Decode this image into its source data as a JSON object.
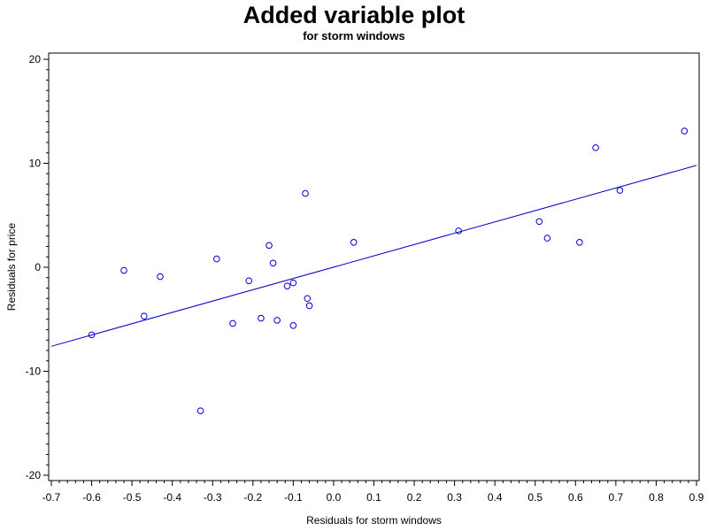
{
  "chart_data": {
    "type": "scatter",
    "title": "Added variable plot",
    "subtitle": "for storm windows",
    "xlabel": "Residuals for storm windows",
    "ylabel": "Residuals for price",
    "xlim": [
      -0.7,
      0.9
    ],
    "ylim": [
      -20,
      20
    ],
    "x_ticks": [
      "-0.7",
      "-0.6",
      "-0.5",
      "-0.4",
      "-0.3",
      "-0.2",
      "-0.1",
      "0.0",
      "0.1",
      "0.2",
      "0.3",
      "0.4",
      "0.5",
      "0.6",
      "0.7",
      "0.8",
      "0.9"
    ],
    "y_ticks": [
      "-20",
      "-10",
      "0",
      "10",
      "20"
    ],
    "grid": false,
    "marker_color": "#0000cc",
    "line_color": "#0000cc",
    "points": [
      {
        "x": -0.6,
        "y": -6.5
      },
      {
        "x": -0.52,
        "y": -0.3
      },
      {
        "x": -0.47,
        "y": -4.7
      },
      {
        "x": -0.43,
        "y": -0.9
      },
      {
        "x": -0.33,
        "y": -13.8
      },
      {
        "x": -0.29,
        "y": 0.8
      },
      {
        "x": -0.25,
        "y": -5.4
      },
      {
        "x": -0.21,
        "y": -1.3
      },
      {
        "x": -0.18,
        "y": -4.9
      },
      {
        "x": -0.16,
        "y": 2.1
      },
      {
        "x": -0.15,
        "y": 0.4
      },
      {
        "x": -0.14,
        "y": -5.1
      },
      {
        "x": -0.115,
        "y": -1.8
      },
      {
        "x": -0.1,
        "y": -1.5
      },
      {
        "x": -0.1,
        "y": -5.6
      },
      {
        "x": -0.07,
        "y": 7.1
      },
      {
        "x": -0.065,
        "y": -3.0
      },
      {
        "x": -0.06,
        "y": -3.7
      },
      {
        "x": 0.05,
        "y": 2.4
      },
      {
        "x": 0.31,
        "y": 3.5
      },
      {
        "x": 0.51,
        "y": 4.4
      },
      {
        "x": 0.53,
        "y": 2.8
      },
      {
        "x": 0.61,
        "y": 2.4
      },
      {
        "x": 0.65,
        "y": 11.5
      },
      {
        "x": 0.71,
        "y": 7.4
      },
      {
        "x": 0.87,
        "y": 13.1
      }
    ],
    "regression_line": {
      "x": [
        -0.7,
        0.9
      ],
      "y": [
        -7.6,
        9.8
      ]
    }
  }
}
